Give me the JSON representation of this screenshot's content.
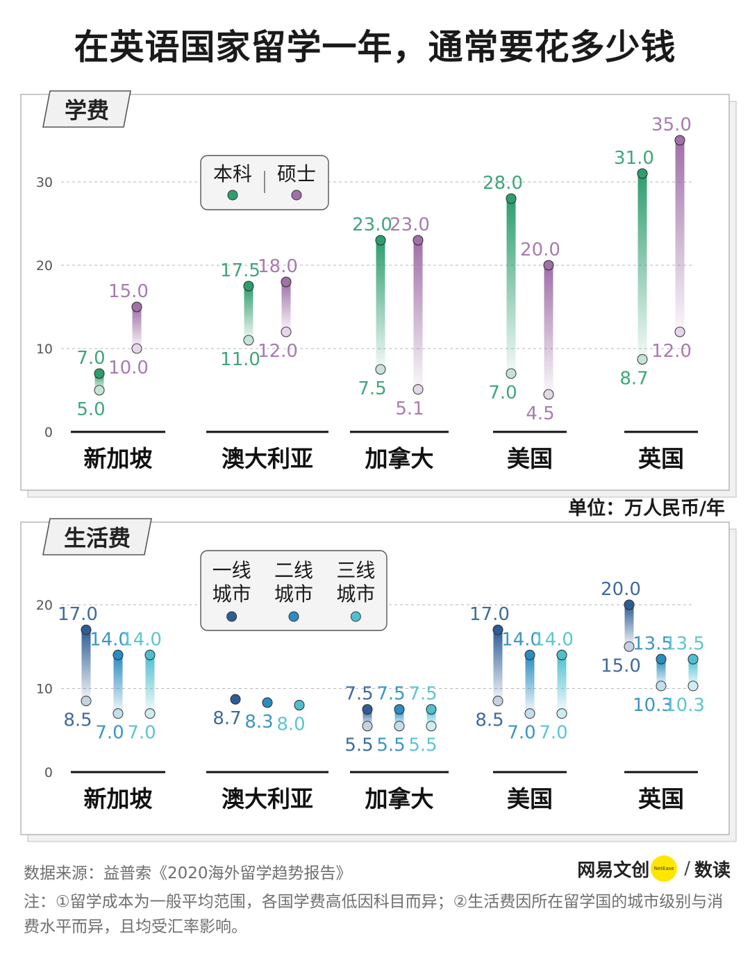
{
  "title": "在英语国家留学一年，通常要花多少钱",
  "unit": "单位：万人民币/年",
  "source": "数据来源：益普索《2020海外留学趋势报告》",
  "note": "注：①留学成本为一般平均范围，各国学费高低因科目而异；②生活费因所在留学国的城市级别与消费水平而异，且均受汇率影响。",
  "brand": {
    "name": "网易文创",
    "badge": "NetEase",
    "sub": "数读"
  },
  "colors": {
    "undergrad": "#2e9e6e",
    "master": "#a070a8",
    "tier1": "#2e5d95",
    "tier2": "#2a8cc0",
    "tier3": "#4fbfd0",
    "panel_border": "#b0b0b0"
  },
  "chart_data": [
    {
      "type": "range",
      "tab_label": "学费",
      "categories": [
        "新加坡",
        "澳大利亚",
        "加拿大",
        "美国",
        "英国"
      ],
      "ylim": [
        0,
        36
      ],
      "yticks": [
        0,
        10,
        20,
        30
      ],
      "grid": true,
      "legend_placement": "top-left",
      "series": [
        {
          "name": "本科",
          "ranges": [
            [
              5.0,
              7.0
            ],
            [
              11.0,
              17.5
            ],
            [
              7.5,
              23.0
            ],
            [
              7.0,
              28.0
            ],
            [
              8.7,
              31.0
            ]
          ],
          "low_labels": [
            "5.0",
            "11.0",
            "7.5",
            "7.0",
            "8.7"
          ],
          "high_labels": [
            "7.0",
            "17.5",
            "23.0",
            "28.0",
            "31.0"
          ]
        },
        {
          "name": "硕士",
          "ranges": [
            [
              10.0,
              15.0
            ],
            [
              12.0,
              18.0
            ],
            [
              5.1,
              23.0
            ],
            [
              4.5,
              20.0
            ],
            [
              12.0,
              35.0
            ]
          ],
          "low_labels": [
            "10.0",
            "12.0",
            "5.1",
            "4.5",
            "12.0"
          ],
          "high_labels": [
            "15.0",
            "18.0",
            "23.0",
            "20.0",
            "35.0"
          ]
        }
      ]
    },
    {
      "type": "range",
      "tab_label": "生活费",
      "categories": [
        "新加坡",
        "澳大利亚",
        "加拿大",
        "美国",
        "英国"
      ],
      "ylim": [
        0,
        22
      ],
      "yticks": [
        0,
        10,
        20
      ],
      "grid": true,
      "legend_placement": "top-left",
      "series": [
        {
          "name": "一线城市",
          "legend_lines": [
            "一线",
            "城市"
          ],
          "ranges": [
            [
              8.5,
              17.0
            ],
            [
              8.7,
              8.7
            ],
            [
              5.5,
              7.5
            ],
            [
              8.5,
              17.0
            ],
            [
              15.0,
              20.0
            ]
          ],
          "low_labels": [
            "8.5",
            "8.7",
            "5.5",
            "8.5",
            "15.0"
          ],
          "high_labels": [
            "17.0",
            "",
            "7.5",
            "17.0",
            "20.0"
          ]
        },
        {
          "name": "二线城市",
          "legend_lines": [
            "二线",
            "城市"
          ],
          "ranges": [
            [
              7.0,
              14.0
            ],
            [
              8.3,
              8.3
            ],
            [
              5.5,
              7.5
            ],
            [
              7.0,
              14.0
            ],
            [
              10.3,
              13.5
            ]
          ],
          "low_labels": [
            "7.0",
            "8.3",
            "5.5",
            "7.0",
            "10.3"
          ],
          "high_labels": [
            "14.0",
            "",
            "7.5",
            "14.0",
            "13.5"
          ]
        },
        {
          "name": "三线城市",
          "legend_lines": [
            "三线",
            "城市"
          ],
          "ranges": [
            [
              7.0,
              14.0
            ],
            [
              8.0,
              8.0
            ],
            [
              5.5,
              7.5
            ],
            [
              7.0,
              14.0
            ],
            [
              10.3,
              13.5
            ]
          ],
          "low_labels": [
            "7.0",
            "8.0",
            "5.5",
            "7.0",
            "10.3"
          ],
          "high_labels": [
            "14.0",
            "",
            "7.5",
            "14.0",
            "13.5"
          ]
        }
      ]
    }
  ]
}
